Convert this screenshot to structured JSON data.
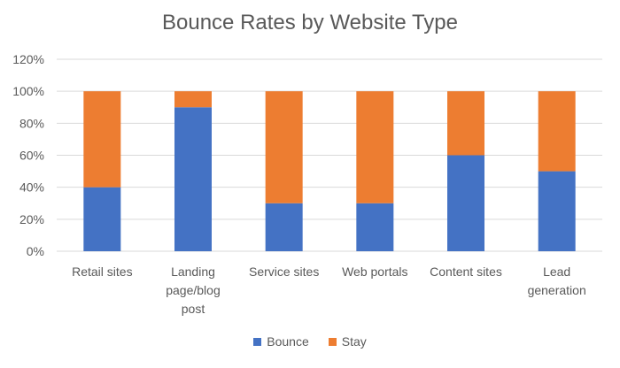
{
  "chart_data": {
    "type": "bar",
    "stacked": true,
    "title": "Bounce Rates by Website Type",
    "categories": [
      [
        "Retail sites"
      ],
      [
        "Landing",
        "page/blog",
        "post"
      ],
      [
        "Service sites"
      ],
      [
        "Web portals"
      ],
      [
        "Content sites"
      ],
      [
        "Lead",
        "generation"
      ]
    ],
    "series": [
      {
        "name": "Bounce",
        "color": "#4472C4",
        "values": [
          40,
          90,
          30,
          30,
          60,
          50
        ]
      },
      {
        "name": "Stay",
        "color": "#ED7D31",
        "values": [
          60,
          10,
          70,
          70,
          40,
          50
        ]
      }
    ],
    "ylim": [
      0,
      120
    ],
    "yticks": [
      "0%",
      "20%",
      "40%",
      "60%",
      "80%",
      "100%",
      "120%"
    ],
    "ytick_values": [
      0,
      20,
      40,
      60,
      80,
      100,
      120
    ],
    "grid": true,
    "legend_position": "bottom"
  }
}
